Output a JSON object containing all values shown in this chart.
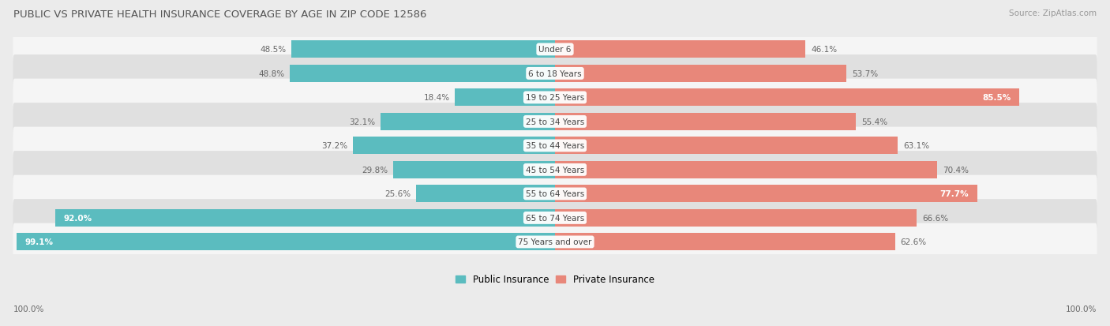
{
  "title": "PUBLIC VS PRIVATE HEALTH INSURANCE COVERAGE BY AGE IN ZIP CODE 12586",
  "source": "Source: ZipAtlas.com",
  "categories": [
    "Under 6",
    "6 to 18 Years",
    "19 to 25 Years",
    "25 to 34 Years",
    "35 to 44 Years",
    "45 to 54 Years",
    "55 to 64 Years",
    "65 to 74 Years",
    "75 Years and over"
  ],
  "public_values": [
    48.5,
    48.8,
    18.4,
    32.1,
    37.2,
    29.8,
    25.6,
    92.0,
    99.1
  ],
  "private_values": [
    46.1,
    53.7,
    85.5,
    55.4,
    63.1,
    70.4,
    77.7,
    66.6,
    62.6
  ],
  "public_color": "#5bbcbf",
  "private_color": "#e8877a",
  "bg_color": "#ebebeb",
  "row_bg_light": "#f5f5f5",
  "row_bg_dark": "#e0e0e0",
  "label_color_dark": "#666666",
  "title_color": "#555555",
  "source_color": "#999999",
  "axis_label": "100.0%",
  "max_val": 100.0,
  "title_fontsize": 9.5,
  "source_fontsize": 7.5,
  "value_fontsize": 7.5,
  "cat_fontsize": 7.5,
  "axis_fontsize": 7.5
}
